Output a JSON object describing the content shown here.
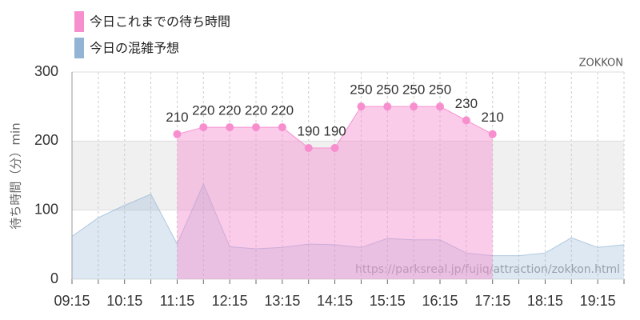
{
  "chart_data": {
    "type": "area",
    "legend_position": "top-left",
    "brand": "ZOKKON",
    "source_url": "https://parksreal.jp/fujiq/attraction/zokkon.html",
    "y_label": "待ち時間（分）min",
    "categories": [
      "09:15",
      null,
      "10:15",
      null,
      "11:15",
      null,
      "12:15",
      null,
      "13:15",
      null,
      "14:15",
      null,
      "15:15",
      null,
      "16:15",
      null,
      "17:15",
      null,
      "18:15",
      null,
      "19:15",
      null
    ],
    "series": [
      {
        "name": "今日これまでの待ち時間",
        "color": "#f78fcf",
        "values": [
          null,
          null,
          null,
          null,
          210,
          220,
          220,
          220,
          220,
          190,
          190,
          250,
          250,
          250,
          250,
          230,
          210,
          null,
          null,
          null,
          null,
          null
        ]
      },
      {
        "name": "今日の混雑予想",
        "color": "#93b4d4",
        "values": [
          62,
          89,
          107,
          123,
          51,
          138,
          47,
          44,
          46,
          51,
          50,
          46,
          59,
          57,
          57,
          38,
          34,
          34,
          38,
          60,
          46,
          50
        ]
      }
    ],
    "ylim": [
      0,
      300
    ],
    "yticks": [
      0,
      100,
      200,
      300
    ],
    "grid": true,
    "highlight_band": [
      100,
      200
    ]
  }
}
